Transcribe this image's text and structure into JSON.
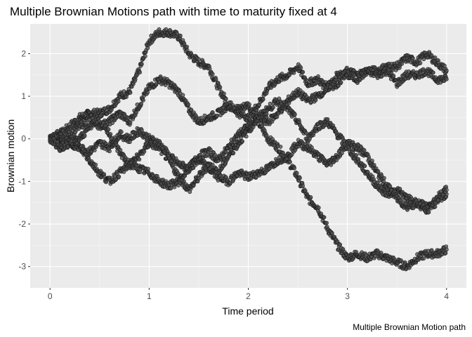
{
  "chart_data": {
    "type": "scatter",
    "title": "Multiple Brownian Motions path with time to maturity fixed at 4",
    "xlabel": "Time period",
    "ylabel": "Brownian motion",
    "caption": "Multiple Brownian Motion path",
    "xlim": [
      -0.2,
      4.2
    ],
    "ylim": [
      -3.5,
      2.7
    ],
    "x_ticks": [
      0,
      1,
      2,
      3,
      4
    ],
    "y_ticks": [
      -3,
      -2,
      -1,
      0,
      1,
      2
    ],
    "grid": true,
    "legend": "none",
    "series": [
      {
        "x": [
          0,
          0.1,
          0.2,
          0.3,
          0.4,
          0.5,
          0.6,
          0.7,
          0.8,
          0.9,
          1.0,
          1.1,
          1.2,
          1.3,
          1.4,
          1.5,
          1.6,
          1.7,
          1.8,
          1.9,
          2.0,
          2.1,
          2.2,
          2.3,
          2.4,
          2.5,
          2.6,
          2.7,
          2.8,
          2.9,
          3.0,
          3.1,
          3.2,
          3.3,
          3.4,
          3.5,
          3.6,
          3.7,
          3.8,
          3.9,
          4.0
        ],
        "values": [
          0,
          0.1,
          0.3,
          0.5,
          0.6,
          0.6,
          0.7,
          1.0,
          1.1,
          1.6,
          2.3,
          2.5,
          2.5,
          2.4,
          2.0,
          1.8,
          1.7,
          1.2,
          0.8,
          0.7,
          0.8,
          0.4,
          0.0,
          -0.2,
          -0.5,
          -0.9,
          -1.4,
          -1.6,
          -2.1,
          -2.5,
          -2.8,
          -2.7,
          -2.8,
          -2.7,
          -2.8,
          -2.9,
          -3.0,
          -2.8,
          -2.7,
          -2.7,
          -2.6
        ]
      },
      {
        "x": [
          0,
          0.1,
          0.2,
          0.3,
          0.4,
          0.5,
          0.6,
          0.7,
          0.8,
          0.9,
          1.0,
          1.1,
          1.2,
          1.3,
          1.4,
          1.5,
          1.6,
          1.7,
          1.8,
          1.9,
          2.0,
          2.1,
          2.2,
          2.3,
          2.4,
          2.5,
          2.6,
          2.7,
          2.8,
          2.9,
          3.0,
          3.1,
          3.2,
          3.3,
          3.4,
          3.5,
          3.6,
          3.7,
          3.8,
          3.9,
          4.0
        ],
        "values": [
          0,
          -0.1,
          0.1,
          0.3,
          0.5,
          0.3,
          0.4,
          0.6,
          0.4,
          0.8,
          1.2,
          1.4,
          1.3,
          1.1,
          0.7,
          0.4,
          0.5,
          0.6,
          0.8,
          0.6,
          0.5,
          0.8,
          1.2,
          1.4,
          1.5,
          1.7,
          1.3,
          1.4,
          1.2,
          1.3,
          1.6,
          1.5,
          1.6,
          1.6,
          1.7,
          1.7,
          1.9,
          1.8,
          2.0,
          1.8,
          1.6
        ]
      },
      {
        "x": [
          0,
          0.1,
          0.2,
          0.3,
          0.4,
          0.5,
          0.6,
          0.7,
          0.8,
          0.9,
          1.0,
          1.1,
          1.2,
          1.3,
          1.4,
          1.5,
          1.6,
          1.7,
          1.8,
          1.9,
          2.0,
          2.1,
          2.2,
          2.3,
          2.4,
          2.5,
          2.6,
          2.7,
          2.8,
          2.9,
          3.0,
          3.1,
          3.2,
          3.3,
          3.4,
          3.5,
          3.6,
          3.7,
          3.8,
          3.9,
          4.0
        ],
        "values": [
          0,
          -0.2,
          -0.1,
          -0.2,
          -0.3,
          -0.1,
          -0.2,
          0.1,
          0.0,
          0.2,
          0.0,
          -0.1,
          -0.4,
          -0.6,
          -0.7,
          -0.4,
          -0.3,
          -0.5,
          -0.2,
          0.1,
          0.3,
          0.5,
          0.4,
          0.6,
          0.9,
          1.1,
          0.9,
          1.0,
          1.2,
          1.5,
          1.5,
          1.4,
          1.6,
          1.5,
          1.6,
          1.3,
          1.5,
          1.5,
          1.6,
          1.4,
          1.4
        ]
      },
      {
        "x": [
          0,
          0.1,
          0.2,
          0.3,
          0.4,
          0.5,
          0.6,
          0.7,
          0.8,
          0.9,
          1.0,
          1.1,
          1.2,
          1.3,
          1.4,
          1.5,
          1.6,
          1.7,
          1.8,
          1.9,
          2.0,
          2.1,
          2.2,
          2.3,
          2.4,
          2.5,
          2.6,
          2.7,
          2.8,
          2.9,
          3.0,
          3.1,
          3.2,
          3.3,
          3.4,
          3.5,
          3.6,
          3.7,
          3.8,
          3.9,
          4.0
        ],
        "values": [
          0,
          0.2,
          -0.1,
          0.0,
          0.3,
          0.5,
          0.1,
          -0.3,
          -0.6,
          -0.4,
          -0.1,
          -0.2,
          -0.5,
          -0.9,
          -1.2,
          -0.9,
          -0.6,
          -0.8,
          -0.4,
          -0.1,
          0.2,
          0.5,
          0.7,
          0.9,
          0.7,
          0.4,
          0.0,
          0.3,
          0.4,
          0.1,
          -0.2,
          -0.5,
          -0.8,
          -1.1,
          -1.3,
          -1.2,
          -1.4,
          -1.5,
          -1.6,
          -1.5,
          -1.3
        ]
      },
      {
        "x": [
          0,
          0.1,
          0.2,
          0.3,
          0.4,
          0.5,
          0.6,
          0.7,
          0.8,
          0.9,
          1.0,
          1.1,
          1.2,
          1.3,
          1.4,
          1.5,
          1.6,
          1.7,
          1.8,
          1.9,
          2.0,
          2.1,
          2.2,
          2.3,
          2.4,
          2.5,
          2.6,
          2.7,
          2.8,
          2.9,
          3.0,
          3.1,
          3.2,
          3.3,
          3.4,
          3.5,
          3.6,
          3.7,
          3.8,
          3.9,
          4.0
        ],
        "values": [
          0,
          -0.2,
          -0.1,
          -0.2,
          -0.5,
          -0.8,
          -1.0,
          -0.8,
          -0.6,
          -0.7,
          -0.8,
          -1.0,
          -1.1,
          -1.0,
          -0.7,
          -0.5,
          -0.7,
          -0.9,
          -1.0,
          -0.8,
          -0.9,
          -0.8,
          -0.7,
          -0.5,
          -0.4,
          -0.1,
          -0.2,
          -0.4,
          -0.6,
          -0.4,
          -0.1,
          -0.2,
          -0.4,
          -0.8,
          -1.1,
          -1.4,
          -1.6,
          -1.5,
          -1.7,
          -1.4,
          -1.2
        ]
      }
    ]
  }
}
